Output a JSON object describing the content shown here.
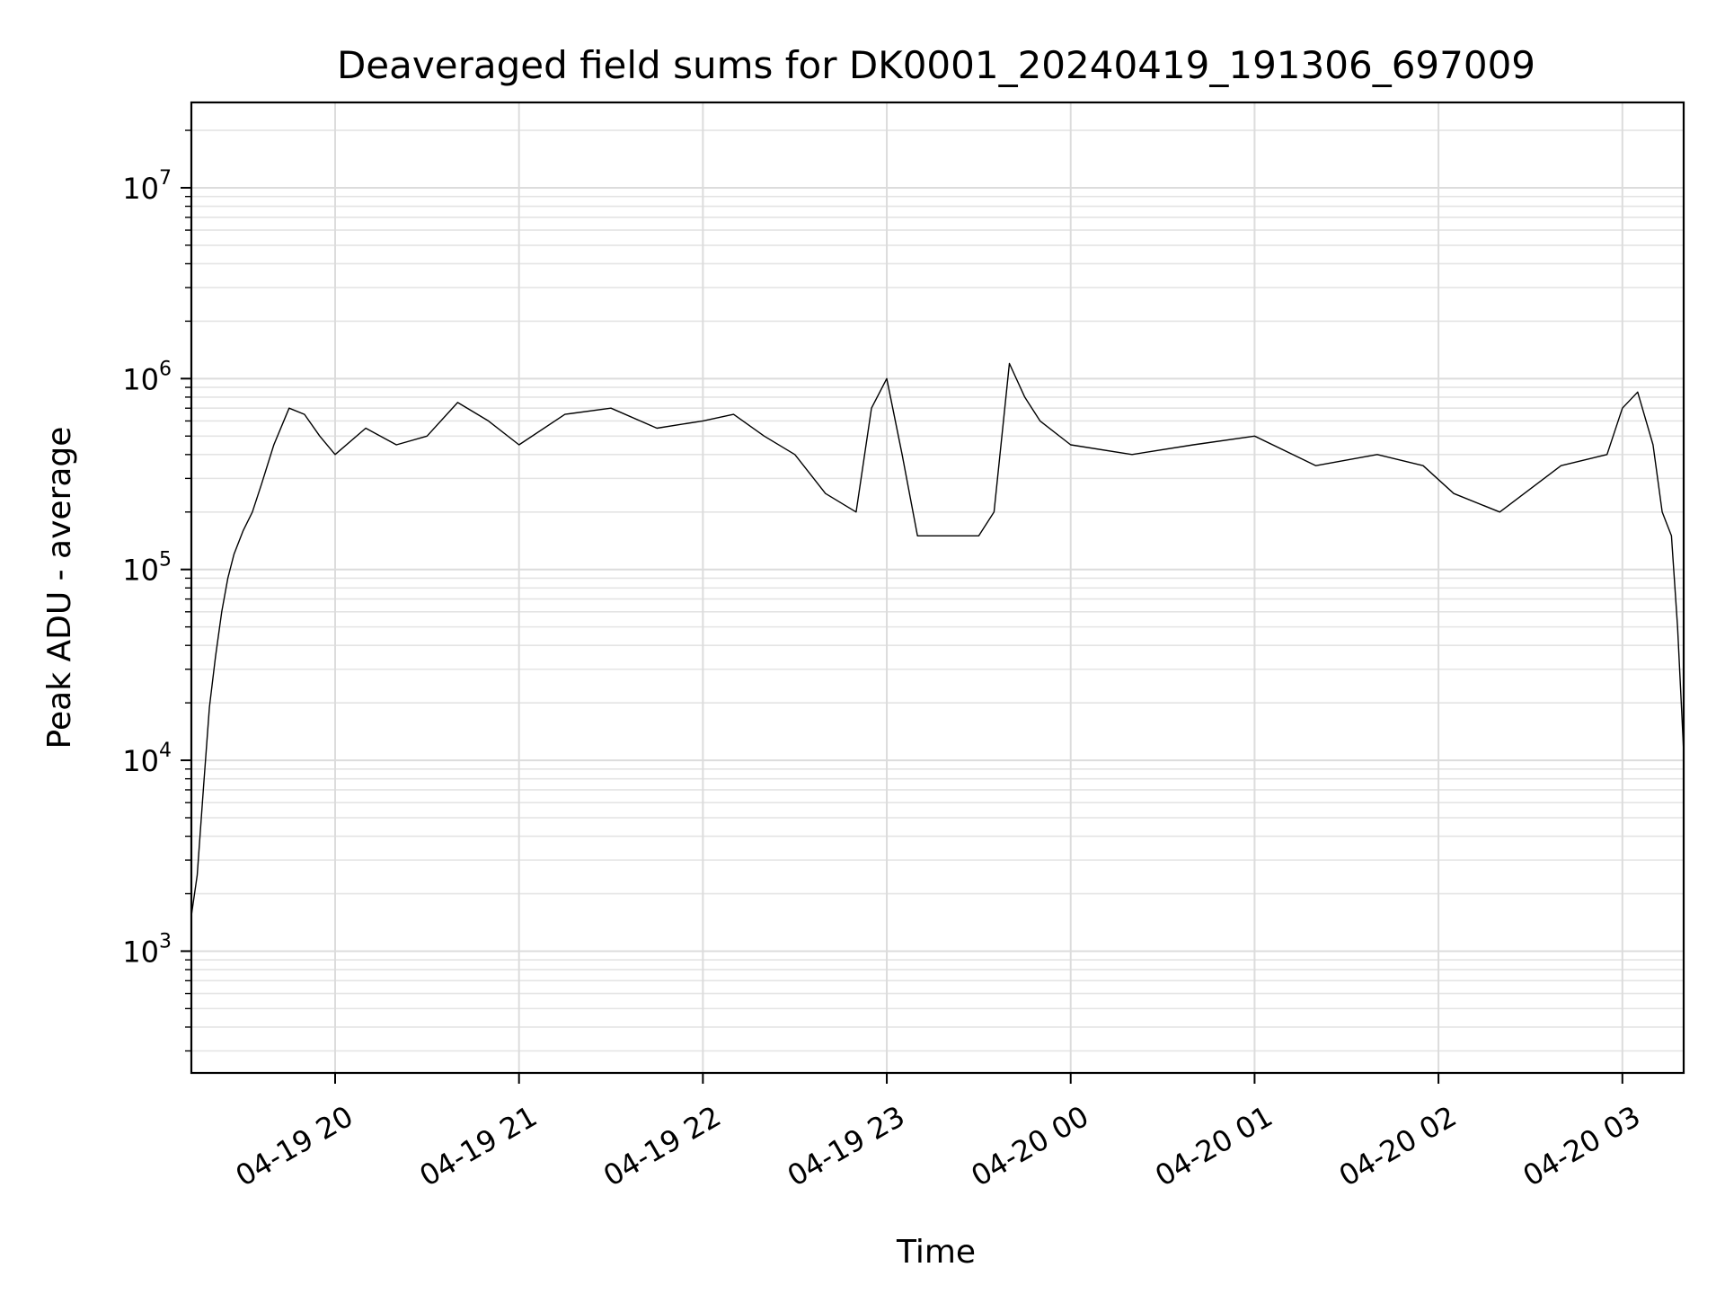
{
  "chart_data": {
    "type": "line",
    "title": "Deaveraged field sums for DK0001_20240419_191306_697009",
    "xlabel": "Time",
    "ylabel": "Peak ADU - average",
    "yscale": "log",
    "ylim": [
      230,
      28000000
    ],
    "xlim": [
      "2024-04-19 19:13:06",
      "2024-04-20 03:20:00"
    ],
    "grid": "on",
    "x_ticks": [
      {
        "t": "2024-04-19 20:00",
        "label": "04-19 20"
      },
      {
        "t": "2024-04-19 21:00",
        "label": "04-19 21"
      },
      {
        "t": "2024-04-19 22:00",
        "label": "04-19 22"
      },
      {
        "t": "2024-04-19 23:00",
        "label": "04-19 23"
      },
      {
        "t": "2024-04-20 00:00",
        "label": "04-20 00"
      },
      {
        "t": "2024-04-20 01:00",
        "label": "04-20 01"
      },
      {
        "t": "2024-04-20 02:00",
        "label": "04-20 02"
      },
      {
        "t": "2024-04-20 03:00",
        "label": "04-20 03"
      }
    ],
    "y_ticks": [
      {
        "value": 1000,
        "base": "10",
        "exp": "3"
      },
      {
        "value": 10000,
        "base": "10",
        "exp": "4"
      },
      {
        "value": 100000,
        "base": "10",
        "exp": "5"
      },
      {
        "value": 1000000,
        "base": "10",
        "exp": "6"
      },
      {
        "value": 10000000,
        "base": "10",
        "exp": "7"
      }
    ],
    "series": [
      {
        "color": "#000000",
        "x": [
          "2024-04-19 19:13",
          "2024-04-19 19:15",
          "2024-04-19 19:17",
          "2024-04-19 19:19",
          "2024-04-19 19:21",
          "2024-04-19 19:23",
          "2024-04-19 19:25",
          "2024-04-19 19:27",
          "2024-04-19 19:30",
          "2024-04-19 19:33",
          "2024-04-19 19:36",
          "2024-04-19 19:40",
          "2024-04-19 19:45",
          "2024-04-19 19:50",
          "2024-04-19 19:55",
          "2024-04-19 20:00",
          "2024-04-19 20:10",
          "2024-04-19 20:20",
          "2024-04-19 20:30",
          "2024-04-19 20:40",
          "2024-04-19 20:50",
          "2024-04-19 21:00",
          "2024-04-19 21:15",
          "2024-04-19 21:30",
          "2024-04-19 21:45",
          "2024-04-19 22:00",
          "2024-04-19 22:10",
          "2024-04-19 22:20",
          "2024-04-19 22:30",
          "2024-04-19 22:40",
          "2024-04-19 22:50",
          "2024-04-19 22:55",
          "2024-04-19 23:00",
          "2024-04-19 23:05",
          "2024-04-19 23:10",
          "2024-04-19 23:20",
          "2024-04-19 23:30",
          "2024-04-19 23:35",
          "2024-04-19 23:40",
          "2024-04-19 23:45",
          "2024-04-19 23:50",
          "2024-04-20 00:00",
          "2024-04-20 00:20",
          "2024-04-20 00:40",
          "2024-04-20 01:00",
          "2024-04-20 01:20",
          "2024-04-20 01:40",
          "2024-04-20 01:55",
          "2024-04-20 02:05",
          "2024-04-20 02:20",
          "2024-04-20 02:40",
          "2024-04-20 02:55",
          "2024-04-20 03:00",
          "2024-04-20 03:05",
          "2024-04-20 03:10",
          "2024-04-20 03:13",
          "2024-04-20 03:16",
          "2024-04-20 03:18",
          "2024-04-20 03:20"
        ],
        "values": [
          1500,
          2500,
          7000,
          19000,
          35000,
          60000,
          90000,
          120000,
          160000,
          200000,
          280000,
          450000,
          700000,
          650000,
          500000,
          400000,
          550000,
          450000,
          500000,
          750000,
          600000,
          450000,
          650000,
          700000,
          550000,
          600000,
          650000,
          500000,
          400000,
          250000,
          200000,
          700000,
          1000000,
          400000,
          150000,
          150000,
          150000,
          200000,
          1200000,
          800000,
          600000,
          450000,
          400000,
          450000,
          500000,
          350000,
          400000,
          350000,
          250000,
          200000,
          350000,
          400000,
          700000,
          850000,
          450000,
          200000,
          150000,
          50000,
          11000
        ]
      }
    ]
  }
}
